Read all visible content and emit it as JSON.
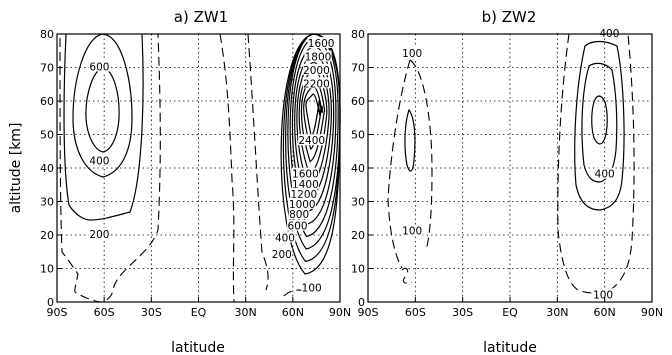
{
  "chart_data": [
    {
      "type": "contour",
      "title": "a) ZW1",
      "xlabel": "latitude",
      "ylabel": "altitude [km]",
      "xticks": [
        "90S",
        "60S",
        "30S",
        "EQ",
        "30N",
        "60N",
        "90N"
      ],
      "xlim": [
        -90,
        90
      ],
      "ylim": [
        0,
        80
      ],
      "yticks": [
        0,
        10,
        20,
        30,
        40,
        50,
        60,
        70,
        80
      ],
      "grid": true,
      "contour_interval": 200,
      "contour_labels": [
        {
          "text": "600",
          "lat": -63,
          "alt": 70
        },
        {
          "text": "400",
          "lat": -63,
          "alt": 42
        },
        {
          "text": "200",
          "lat": -63,
          "alt": 20
        },
        {
          "text": "1600",
          "lat": 78,
          "alt": 77
        },
        {
          "text": "1800",
          "lat": 76,
          "alt": 73
        },
        {
          "text": "2000",
          "lat": 75,
          "alt": 69
        },
        {
          "text": "2200",
          "lat": 75,
          "alt": 65
        },
        {
          "text": "2400",
          "lat": 72,
          "alt": 48
        },
        {
          "text": "1600",
          "lat": 68,
          "alt": 38
        },
        {
          "text": "1400",
          "lat": 68,
          "alt": 35
        },
        {
          "text": "1200",
          "lat": 67,
          "alt": 32
        },
        {
          "text": "1000",
          "lat": 66,
          "alt": 29
        },
        {
          "text": "800",
          "lat": 64,
          "alt": 26
        },
        {
          "text": "600",
          "lat": 63,
          "alt": 22.5
        },
        {
          "text": "400",
          "lat": 55,
          "alt": 19
        },
        {
          "text": "200",
          "lat": 53,
          "alt": 14
        },
        {
          "text": "100",
          "lat": 72,
          "alt": 4
        }
      ]
    },
    {
      "type": "contour",
      "title": "b) ZW2",
      "xlabel": "latitude",
      "ylabel": "",
      "xticks": [
        "90S",
        "60S",
        "30S",
        "EQ",
        "30N",
        "60N",
        "90N"
      ],
      "xlim": [
        -90,
        90
      ],
      "ylim": [
        0,
        80
      ],
      "yticks": [
        0,
        10,
        20,
        30,
        40,
        50,
        60,
        70,
        80
      ],
      "grid": true,
      "contour_labels": [
        {
          "text": "100",
          "lat": -62,
          "alt": 74
        },
        {
          "text": "100",
          "lat": -62,
          "alt": 21
        },
        {
          "text": "400",
          "lat": 63,
          "alt": 80
        },
        {
          "text": "400",
          "lat": 60,
          "alt": 38
        },
        {
          "text": "100",
          "lat": 59,
          "alt": 2
        }
      ]
    }
  ]
}
